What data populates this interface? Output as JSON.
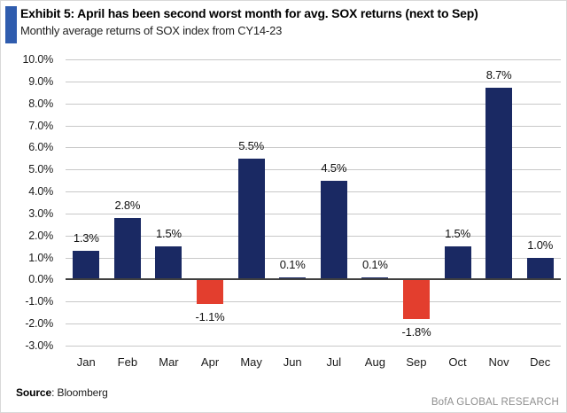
{
  "header": {
    "exhibit_title": "Exhibit 5: April has been second worst month for avg. SOX returns (next to Sep)",
    "subtitle": "Monthly average returns of SOX index from CY14-23"
  },
  "chart_data": {
    "type": "bar",
    "title": "Exhibit 5: April has been second worst month for avg. SOX returns (next to Sep)",
    "subtitle": "Monthly average returns of SOX index from CY14-23",
    "categories": [
      "Jan",
      "Feb",
      "Mar",
      "Apr",
      "May",
      "Jun",
      "Jul",
      "Aug",
      "Sep",
      "Oct",
      "Nov",
      "Dec"
    ],
    "values": [
      1.3,
      2.8,
      1.5,
      -1.1,
      5.5,
      0.1,
      4.5,
      0.1,
      -1.8,
      1.5,
      8.7,
      1.0
    ],
    "value_labels": [
      "1.3%",
      "2.8%",
      "1.5%",
      "-1.1%",
      "5.5%",
      "0.1%",
      "4.5%",
      "0.1%",
      "-1.8%",
      "1.5%",
      "8.7%",
      "1.0%"
    ],
    "y_ticks": [
      "10.0%",
      "9.0%",
      "8.0%",
      "7.0%",
      "6.0%",
      "5.0%",
      "4.0%",
      "3.0%",
      "2.0%",
      "1.0%",
      "0.0%",
      "-1.0%",
      "-2.0%",
      "-3.0%"
    ],
    "ylim": [
      -3,
      10
    ],
    "xlabel": "",
    "ylabel": "",
    "grid": true,
    "legend": false
  },
  "footer": {
    "source_label": "Source",
    "source_value": ": Bloomberg",
    "brand": "BofA GLOBAL RESEARCH"
  },
  "colors": {
    "bar_positive": "#1a2963",
    "bar_negative": "#e33e2e",
    "accent_bar": "#2f5cae",
    "gridline": "#c8c8c8",
    "zero_line": "#404040",
    "brand_text": "#8e8e8e"
  }
}
